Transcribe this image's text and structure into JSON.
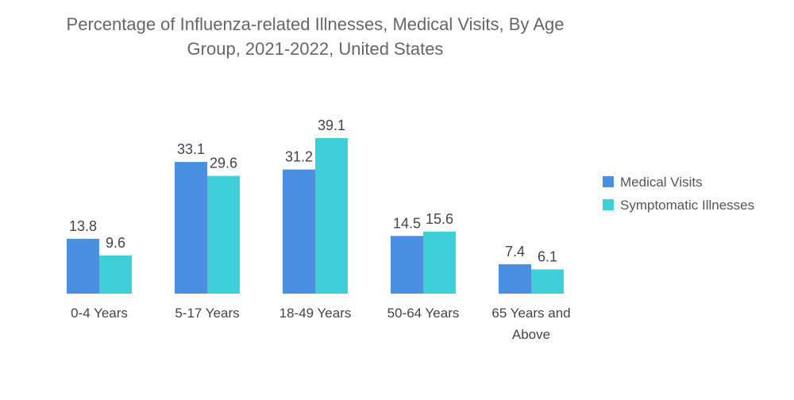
{
  "chart_data": {
    "type": "bar",
    "title_lines": [
      "Percentage of Influenza-related Illnesses, Medical Visits, By Age",
      "Group, 2021-2022, United States"
    ],
    "categories": [
      [
        "0-4 Years"
      ],
      [
        "5-17 Years"
      ],
      [
        "18-49 Years"
      ],
      [
        "50-64 Years"
      ],
      [
        "65 Years and",
        "Above"
      ]
    ],
    "series": [
      {
        "name": "Medical Visits",
        "color": "#4a90e2",
        "values": [
          13.8,
          33.1,
          31.2,
          14.5,
          7.4
        ],
        "labels": [
          "13.8",
          "33.1",
          "31.2",
          "14.5",
          "7.4"
        ]
      },
      {
        "name": "Symptomatic Illnesses",
        "color": "#3ecfd9",
        "values": [
          9.6,
          29.6,
          39.1,
          15.6,
          6.1
        ],
        "labels": [
          "9.6",
          "29.6",
          "39.1",
          "15.6",
          "6.1"
        ]
      }
    ],
    "xlabel": "",
    "ylabel": "",
    "ylim": [
      0,
      39.1
    ],
    "grid": false,
    "legend_position": "right"
  }
}
